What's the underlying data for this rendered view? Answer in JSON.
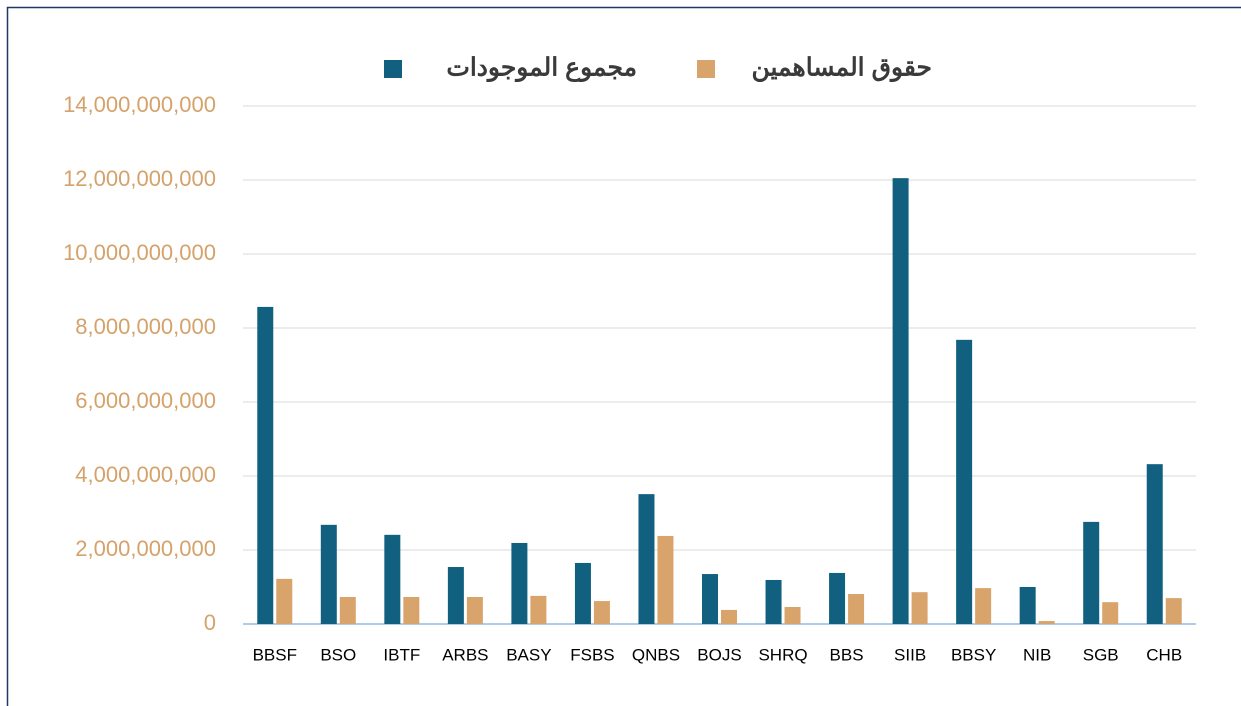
{
  "chart_data": {
    "type": "bar",
    "categories": [
      "BBSF",
      "BSO",
      "IBTF",
      "ARBS",
      "BASY",
      "FSBS",
      "QNBS",
      "BOJS",
      "SHRQ",
      "BBS",
      "SIIB",
      "BBSY",
      "NIB",
      "SGB",
      "CHB"
    ],
    "series": [
      {
        "name": "مجموع الموجودات",
        "color": "#12607f",
        "values": [
          8570000000,
          2680000000,
          2410000000,
          1540000000,
          2190000000,
          1650000000,
          3510000000,
          1350000000,
          1190000000,
          1380000000,
          12050000000,
          7680000000,
          1000000000,
          2760000000,
          4320000000
        ]
      },
      {
        "name": "حقوق المساهمين",
        "color": "#d9a46c",
        "values": [
          1220000000,
          730000000,
          730000000,
          730000000,
          760000000,
          620000000,
          2380000000,
          380000000,
          460000000,
          810000000,
          860000000,
          970000000,
          80000000,
          590000000,
          700000000
        ]
      }
    ],
    "ylim": [
      0,
      14000000000
    ],
    "yticks": [
      0,
      {
        "value": 2000000000,
        "label": "2,000,000,000"
      },
      {
        "value": 4000000000,
        "label": "4,000,000,000"
      },
      {
        "value": 6000000000,
        "label": "6,000,000,000"
      },
      {
        "value": 8000000000,
        "label": "8,000,000,000"
      },
      {
        "value": 10000000000,
        "label": "10,000,000,000"
      },
      {
        "value": 12000000000,
        "label": "12,000,000,000"
      },
      {
        "value": 14000000000,
        "label": "14,000,000,000"
      }
    ],
    "grid": true,
    "legend": "top"
  }
}
